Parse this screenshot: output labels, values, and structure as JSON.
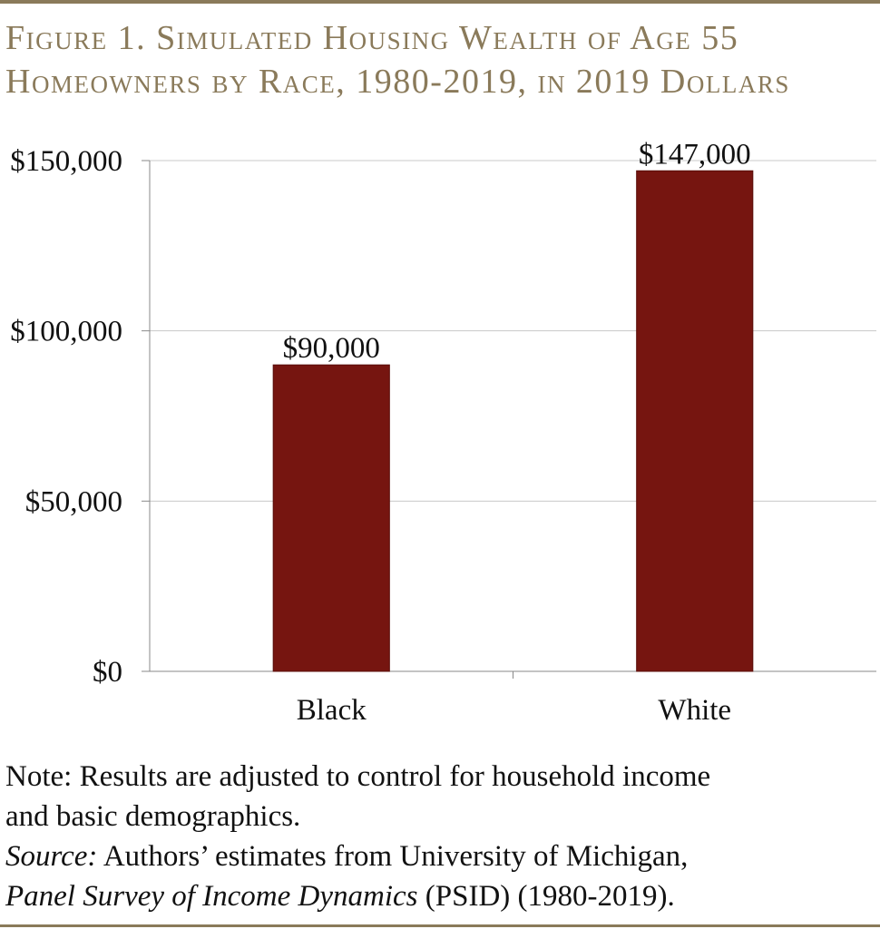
{
  "figure": {
    "title_line1": "Figure 1. Simulated Housing Wealth of Age 55",
    "title_line2": "Homeowners by Race, 1980-2019, in 2019 Dollars",
    "note_line1": "Note: Results are adjusted to control for household income",
    "note_line2": "and basic demographics.",
    "source_label": "Source:",
    "source_line1_text": " Authors’ estimates from University of Michigan,",
    "source_title": "Panel Survey of Income Dynamics",
    "source_line2_text": " (PSID) (1980-2019)."
  },
  "chart_data": {
    "type": "bar",
    "categories": [
      "Black",
      "White"
    ],
    "values": [
      90000,
      147000
    ],
    "data_labels": [
      "$90,000",
      "$147,000"
    ],
    "ylim": [
      0,
      150000
    ],
    "yticks": [
      0,
      50000,
      100000,
      150000
    ],
    "ytick_labels": [
      "$0",
      "$50,000",
      "$100,000",
      "$150,000"
    ],
    "grid": true,
    "legend": "none",
    "bar_color": "#761510",
    "title_color": "#8a7a5a"
  }
}
